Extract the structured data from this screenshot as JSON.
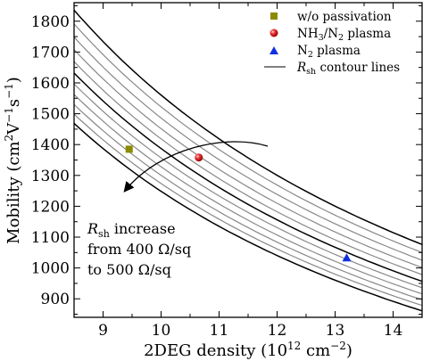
{
  "chart_data": {
    "type": "scatter",
    "xlabel": "2DEG density (10¹² cm⁻²)",
    "ylabel": "Mobility (cm²V⁻¹s⁻¹)",
    "xlim": [
      8.5,
      14.5
    ],
    "ylim": [
      840,
      1860
    ],
    "x_ticks": [
      9,
      10,
      11,
      12,
      13,
      14
    ],
    "y_ticks": [
      900,
      1000,
      1100,
      1200,
      1300,
      1400,
      1500,
      1600,
      1700,
      1800
    ],
    "grid": false,
    "legend_position": "top-right",
    "series": [
      {
        "name": "w/o passivation",
        "marker": "square",
        "color": "#8b8b00",
        "points": [
          [
            9.45,
            1385
          ]
        ]
      },
      {
        "name": "NH₃/N₂ plasma",
        "marker": "sphere",
        "color": "#e02020",
        "points": [
          [
            10.65,
            1358
          ]
        ]
      },
      {
        "name": "N₂ plasma",
        "marker": "triangle",
        "color": "#1030e0",
        "points": [
          [
            13.2,
            1033
          ]
        ]
      }
    ],
    "contours": {
      "legend_label": "R_sh contour lines",
      "unit": "Ω/sq",
      "bold_values": [
        400,
        450,
        500
      ],
      "values": [
        400,
        410,
        420,
        430,
        440,
        450,
        460,
        470,
        480,
        490,
        500
      ]
    },
    "annotation": {
      "line1": "R_sh increase",
      "line2": "from 400 Ω/sq",
      "line3": "to 500 Ω/sq"
    }
  }
}
